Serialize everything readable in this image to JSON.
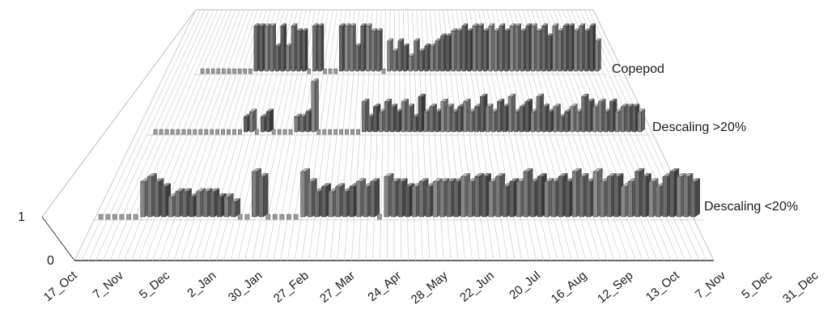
{
  "chart_data": {
    "type": "bar3d",
    "title": "",
    "xlabel": "",
    "ylabel": "",
    "z_ticks": [
      "0",
      "1"
    ],
    "zlim": [
      0,
      1
    ],
    "grid": true,
    "x_tick_labels": [
      "17_Oct",
      "7_Nov",
      "5_Dec",
      "2_Jan",
      "30_Jan",
      "27_Feb",
      "27_Mar",
      "24_Apr",
      "28_May",
      "22_Jun",
      "20_Jul",
      "16_Aug",
      "12_Sep",
      "13_Oct",
      "7_Nov",
      "5_Dec",
      "31_Dec"
    ],
    "series": [
      {
        "name": "Copepod",
        "values": [
          0,
          0,
          0,
          0,
          0,
          0,
          0,
          0,
          0,
          0,
          0.9,
          0.9,
          0.9,
          0.9,
          0.5,
          0.9,
          0.5,
          0.9,
          0.8,
          0.8,
          0,
          0.9,
          0.9,
          0,
          0,
          0,
          0.9,
          0.9,
          0.9,
          0.5,
          0.9,
          0.9,
          0.8,
          0.8,
          0,
          0.6,
          0.4,
          0.6,
          0.5,
          0.3,
          0.6,
          0.4,
          0.5,
          0.5,
          0.6,
          0.7,
          0.7,
          0.8,
          0.8,
          0.9,
          0.8,
          0.9,
          0.9,
          0.8,
          0.9,
          0.8,
          0.9,
          0.8,
          0.9,
          0.9,
          0.8,
          0.9,
          0.9,
          0.8,
          0.9,
          0.7,
          0.9,
          0.8,
          0.9,
          0.9,
          0.8,
          0.9,
          0.8,
          0.9,
          0.6
        ]
      },
      {
        "name": "Descaling >20%",
        "values": [
          0,
          0,
          0,
          0,
          0,
          0,
          0,
          0,
          0,
          0,
          0,
          0,
          0,
          0,
          0,
          0,
          0.3,
          0.4,
          0,
          0.3,
          0.4,
          0,
          0,
          0,
          0,
          0.3,
          0.3,
          0.4,
          1.0,
          0,
          0,
          0,
          0,
          0,
          0,
          0,
          0,
          0.6,
          0.3,
          0.5,
          0.4,
          0.6,
          0.5,
          0.4,
          0.6,
          0.5,
          0.3,
          0.7,
          0.4,
          0.5,
          0.4,
          0.6,
          0.5,
          0.4,
          0.5,
          0.6,
          0.4,
          0.5,
          0.7,
          0.5,
          0.4,
          0.6,
          0.5,
          0.7,
          0.4,
          0.5,
          0.6,
          0.4,
          0.7,
          0.5,
          0.4,
          0.5,
          0.3,
          0.4,
          0.5,
          0.4,
          0.7,
          0.6,
          0.5,
          0.6,
          0.4,
          0.6,
          0.4,
          0.5,
          0.5,
          0.5,
          0.4
        ]
      },
      {
        "name": "Descaling <20%",
        "values": [
          0,
          0,
          0,
          0,
          0,
          0,
          0.7,
          0.8,
          0.7,
          0.6,
          0.4,
          0.5,
          0.5,
          0.4,
          0.5,
          0.5,
          0.5,
          0.4,
          0.4,
          0.3,
          0,
          0,
          0.9,
          0.8,
          0,
          0,
          0,
          0,
          0,
          0.9,
          0.7,
          0.5,
          0.6,
          0.5,
          0.6,
          0.5,
          0.6,
          0.7,
          0.6,
          0.7,
          0,
          0.8,
          0.7,
          0.7,
          0.6,
          0.6,
          0.7,
          0.6,
          0.7,
          0.7,
          0.7,
          0.7,
          0.8,
          0.7,
          0.8,
          0.8,
          0.7,
          0.8,
          0.6,
          0.7,
          0.7,
          0.9,
          0.7,
          0.8,
          0.7,
          0.7,
          0.8,
          0.7,
          0.9,
          0.8,
          0.7,
          0.9,
          0.7,
          0.8,
          0.8,
          0.6,
          0.7,
          0.9,
          0.8,
          0.7,
          0.6,
          0.8,
          0.9,
          0.8,
          0.8,
          0.7
        ]
      }
    ]
  }
}
